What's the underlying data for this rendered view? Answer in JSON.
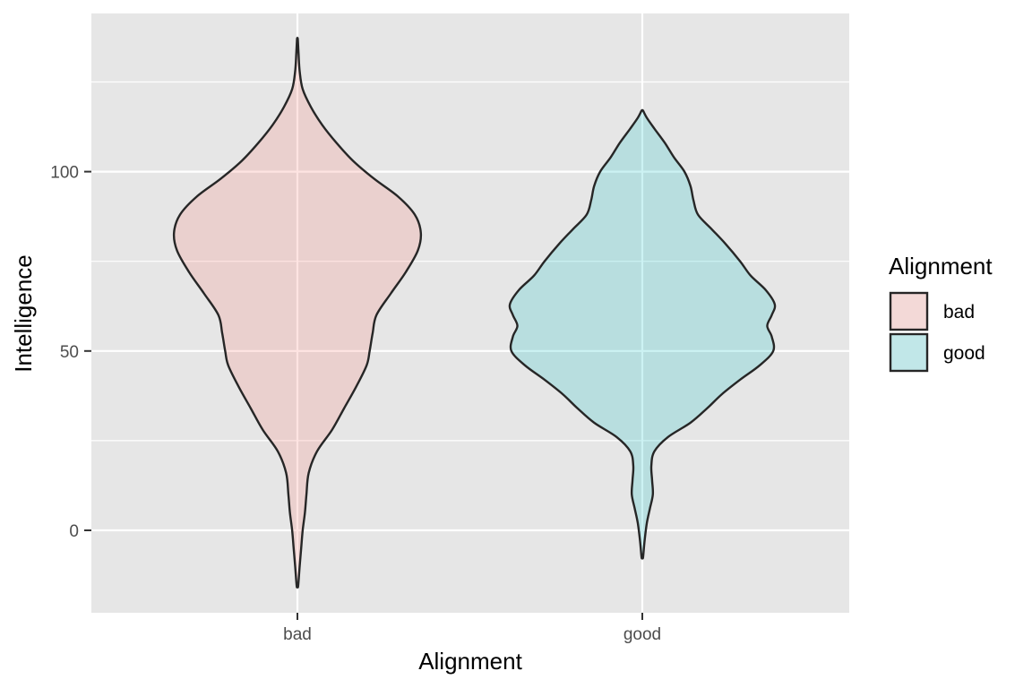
{
  "chart_data": {
    "type": "violin",
    "xlabel": "Alignment",
    "ylabel": "Intelligence",
    "categories": [
      "bad",
      "good"
    ],
    "yticks": [
      0,
      50,
      100
    ],
    "ylim": [
      -23,
      144
    ],
    "legend": {
      "title": "Alignment",
      "placement": "right",
      "entries": [
        {
          "label": "bad",
          "color": "#F8766D"
        },
        {
          "label": "good",
          "color": "#00BFC4"
        }
      ]
    },
    "colors": {
      "panel": "#E6E6E6",
      "grid": "#FFFFFF",
      "outline": "#262626",
      "bad": "#F8766D",
      "good": "#00BFC4"
    },
    "series": [
      {
        "name": "bad",
        "y_range": [
          -15.5,
          137
        ],
        "density_profile": [
          [
            -15.5,
            0.01
          ],
          [
            -10,
            0.03
          ],
          [
            -5,
            0.05
          ],
          [
            0,
            0.07
          ],
          [
            5,
            0.1
          ],
          [
            10,
            0.12
          ],
          [
            16,
            0.15
          ],
          [
            22,
            0.26
          ],
          [
            28,
            0.46
          ],
          [
            34,
            0.62
          ],
          [
            40,
            0.78
          ],
          [
            46,
            0.92
          ],
          [
            50,
            0.96
          ],
          [
            55,
            1.0
          ],
          [
            60,
            1.05
          ],
          [
            66,
            1.24
          ],
          [
            72,
            1.44
          ],
          [
            78,
            1.6
          ],
          [
            83,
            1.64
          ],
          [
            88,
            1.56
          ],
          [
            93,
            1.34
          ],
          [
            98,
            1.02
          ],
          [
            103,
            0.74
          ],
          [
            108,
            0.52
          ],
          [
            113,
            0.33
          ],
          [
            118,
            0.18
          ],
          [
            123,
            0.07
          ],
          [
            128,
            0.03
          ],
          [
            133,
            0.015
          ],
          [
            137,
            0.005
          ]
        ]
      },
      {
        "name": "good",
        "y_range": [
          -7.5,
          117
        ],
        "density_profile": [
          [
            -7.5,
            0.01
          ],
          [
            -3,
            0.03
          ],
          [
            2,
            0.06
          ],
          [
            6,
            0.1
          ],
          [
            10,
            0.14
          ],
          [
            14,
            0.13
          ],
          [
            18,
            0.12
          ],
          [
            22,
            0.16
          ],
          [
            26,
            0.34
          ],
          [
            30,
            0.64
          ],
          [
            34,
            0.86
          ],
          [
            38,
            1.06
          ],
          [
            42,
            1.3
          ],
          [
            46,
            1.56
          ],
          [
            50,
            1.74
          ],
          [
            54,
            1.72
          ],
          [
            57,
            1.66
          ],
          [
            60,
            1.72
          ],
          [
            63,
            1.76
          ],
          [
            67,
            1.64
          ],
          [
            71,
            1.44
          ],
          [
            75,
            1.3
          ],
          [
            80,
            1.1
          ],
          [
            84,
            0.92
          ],
          [
            88,
            0.74
          ],
          [
            92,
            0.68
          ],
          [
            96,
            0.64
          ],
          [
            100,
            0.56
          ],
          [
            104,
            0.42
          ],
          [
            108,
            0.3
          ],
          [
            112,
            0.16
          ],
          [
            115,
            0.06
          ],
          [
            117,
            0.01
          ]
        ]
      }
    ]
  }
}
